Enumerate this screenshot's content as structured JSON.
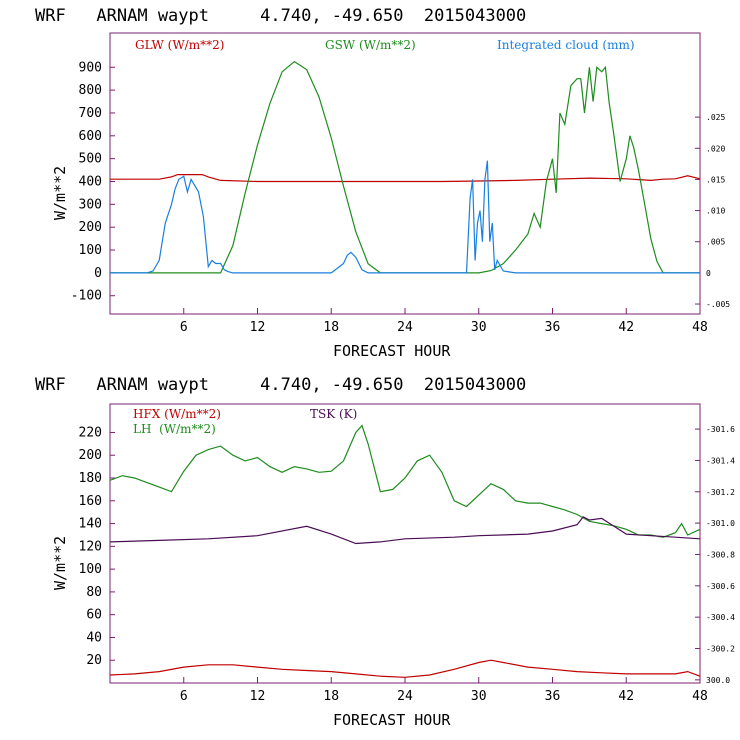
{
  "chart_data": [
    {
      "type": "line",
      "title": "WRF   ARNAM waypt     4.740, -49.650  2015043000",
      "xlabel": "FORECAST HOUR",
      "ylabel": "W/m**2",
      "xlim": [
        0,
        48
      ],
      "ylim": [
        -180,
        1050
      ],
      "x_ticks": [
        6,
        12,
        18,
        24,
        30,
        36,
        42,
        48
      ],
      "y_ticks": [
        -100,
        0,
        100,
        200,
        300,
        400,
        500,
        600,
        700,
        800,
        900
      ],
      "right_axis": {
        "ylim": [
          -0.0066,
          0.0385
        ],
        "ticks": [
          -0.005,
          0,
          0.005,
          0.01,
          0.015,
          0.02,
          0.025
        ],
        "tick_labels": [
          "-.005",
          "0",
          ".005",
          ".010",
          ".015",
          ".020",
          ".025"
        ]
      },
      "series": [
        {
          "name": "GLW (W/m**2)",
          "color": "#c00000",
          "axis": "left",
          "x": [
            0,
            3,
            4,
            5,
            5.5,
            7.5,
            8,
            9,
            12,
            18,
            24,
            27,
            30,
            33,
            36,
            39,
            42,
            44,
            45,
            46,
            47,
            48
          ],
          "y": [
            410,
            410,
            410,
            420,
            430,
            430,
            420,
            405,
            400,
            400,
            400,
            400,
            402,
            405,
            410,
            415,
            412,
            405,
            410,
            412,
            425,
            412
          ]
        },
        {
          "name": "GSW (W/m**2)",
          "color": "#1e8c1e",
          "axis": "left",
          "x": [
            0,
            9,
            10,
            11,
            12,
            13,
            14,
            15,
            16,
            17,
            18,
            19,
            20,
            21,
            22,
            30,
            31,
            32,
            33,
            34,
            34.5,
            35,
            35.5,
            36,
            36.3,
            36.6,
            37,
            37.5,
            38,
            38.3,
            38.6,
            39,
            39.3,
            39.6,
            40,
            40.3,
            40.6,
            41,
            41.5,
            42,
            42.3,
            42.6,
            43,
            43.5,
            44,
            44.5,
            45,
            48
          ],
          "y": [
            0,
            0,
            120,
            350,
            560,
            740,
            880,
            925,
            890,
            770,
            590,
            380,
            180,
            40,
            0,
            0,
            10,
            40,
            100,
            170,
            260,
            200,
            400,
            500,
            350,
            700,
            650,
            820,
            850,
            850,
            700,
            900,
            750,
            900,
            880,
            900,
            750,
            600,
            400,
            500,
            600,
            550,
            450,
            300,
            150,
            50,
            0,
            0
          ]
        },
        {
          "name": "Integrated cloud (mm)",
          "color": "#1a7fe0",
          "axis": "right",
          "x": [
            0,
            3,
            3.5,
            4,
            4.5,
            5,
            5.3,
            5.6,
            6,
            6.3,
            6.6,
            6.9,
            7.2,
            7.6,
            8,
            8.3,
            8.6,
            9,
            9.3,
            9.6,
            10,
            18,
            19,
            19.3,
            19.6,
            20,
            20.5,
            21,
            29,
            29.3,
            29.5,
            29.7,
            29.9,
            30.1,
            30.3,
            30.5,
            30.7,
            30.9,
            31.1,
            31.3,
            31.5,
            32,
            33,
            48
          ],
          "y": [
            0,
            0,
            0.0003,
            0.002,
            0.008,
            0.011,
            0.0135,
            0.015,
            0.0155,
            0.013,
            0.015,
            0.014,
            0.013,
            0.009,
            0.001,
            0.002,
            0.0015,
            0.0015,
            0.0005,
            0.0002,
            0,
            0,
            0.0015,
            0.0028,
            0.0033,
            0.0025,
            0.0005,
            0,
            0,
            0.012,
            0.015,
            0.002,
            0.008,
            0.01,
            0.005,
            0.015,
            0.018,
            0.005,
            0.008,
            0.0005,
            0.002,
            0.0003,
            0,
            0
          ]
        }
      ]
    },
    {
      "type": "line",
      "title": "WRF   ARNAM waypt     4.740, -49.650  2015043000",
      "xlabel": "FORECAST HOUR",
      "ylabel": "W/m**2",
      "xlim": [
        0,
        48
      ],
      "ylim": [
        0,
        245
      ],
      "x_ticks": [
        6,
        12,
        18,
        24,
        30,
        36,
        42,
        48
      ],
      "y_ticks": [
        20,
        40,
        60,
        80,
        100,
        120,
        140,
        160,
        180,
        200,
        220
      ],
      "right_axis": {
        "ylim": [
          299.98,
          301.76
        ],
        "ticks": [
          300.0,
          300.2,
          300.4,
          300.6,
          300.8,
          301.0,
          301.2,
          301.4,
          301.6
        ],
        "tick_labels": [
          "300.0",
          "-300.2",
          "-300.4",
          "-300.6",
          "-300.8",
          "-301.0",
          "-301.2",
          "-301.4",
          "-301.6"
        ]
      },
      "series": [
        {
          "name": "HFX (W/m**2)",
          "color": "#c00000",
          "axis": "left",
          "x": [
            0,
            2,
            4,
            6,
            8,
            10,
            12,
            14,
            16,
            18,
            20,
            22,
            24,
            26,
            28,
            30,
            31,
            32,
            34,
            36,
            38,
            40,
            42,
            44,
            46,
            47,
            48
          ],
          "y": [
            7,
            8,
            10,
            14,
            16,
            16,
            14,
            12,
            11,
            10,
            8,
            6,
            5,
            7,
            12,
            18,
            20,
            18,
            14,
            12,
            10,
            9,
            8,
            8,
            8,
            10,
            6
          ]
        },
        {
          "name": "LH  (W/m**2)",
          "color": "#1e8c1e",
          "axis": "left",
          "x": [
            0,
            1,
            2,
            3,
            4,
            5,
            6,
            7,
            8,
            9,
            10,
            11,
            12,
            13,
            14,
            15,
            16,
            17,
            18,
            19,
            20,
            20.5,
            21,
            22,
            23,
            24,
            25,
            26,
            27,
            28,
            29,
            30,
            31,
            32,
            33,
            34,
            35,
            36,
            37,
            38,
            39,
            40,
            41,
            42,
            43,
            44,
            45,
            46,
            46.5,
            47,
            48
          ],
          "y": [
            178,
            182,
            180,
            176,
            172,
            168,
            186,
            200,
            205,
            208,
            200,
            195,
            198,
            190,
            185,
            190,
            188,
            185,
            186,
            195,
            220,
            226,
            210,
            168,
            170,
            180,
            195,
            200,
            185,
            160,
            155,
            165,
            175,
            170,
            160,
            158,
            158,
            155,
            152,
            148,
            142,
            140,
            138,
            135,
            130,
            130,
            128,
            132,
            140,
            130,
            135
          ]
        },
        {
          "name": "TSK (K)",
          "color": "#4a0c54",
          "axis": "right",
          "x": [
            0,
            4,
            8,
            12,
            16,
            18,
            20,
            22,
            24,
            28,
            30,
            34,
            36,
            38,
            38.5,
            39,
            40,
            41,
            42,
            44,
            46,
            48
          ],
          "y": [
            300.88,
            300.89,
            300.9,
            300.92,
            300.98,
            300.93,
            300.87,
            300.88,
            300.9,
            300.91,
            300.92,
            300.93,
            300.95,
            300.99,
            301.04,
            301.02,
            301.03,
            300.98,
            300.93,
            300.92,
            300.91,
            300.9
          ]
        }
      ]
    }
  ]
}
